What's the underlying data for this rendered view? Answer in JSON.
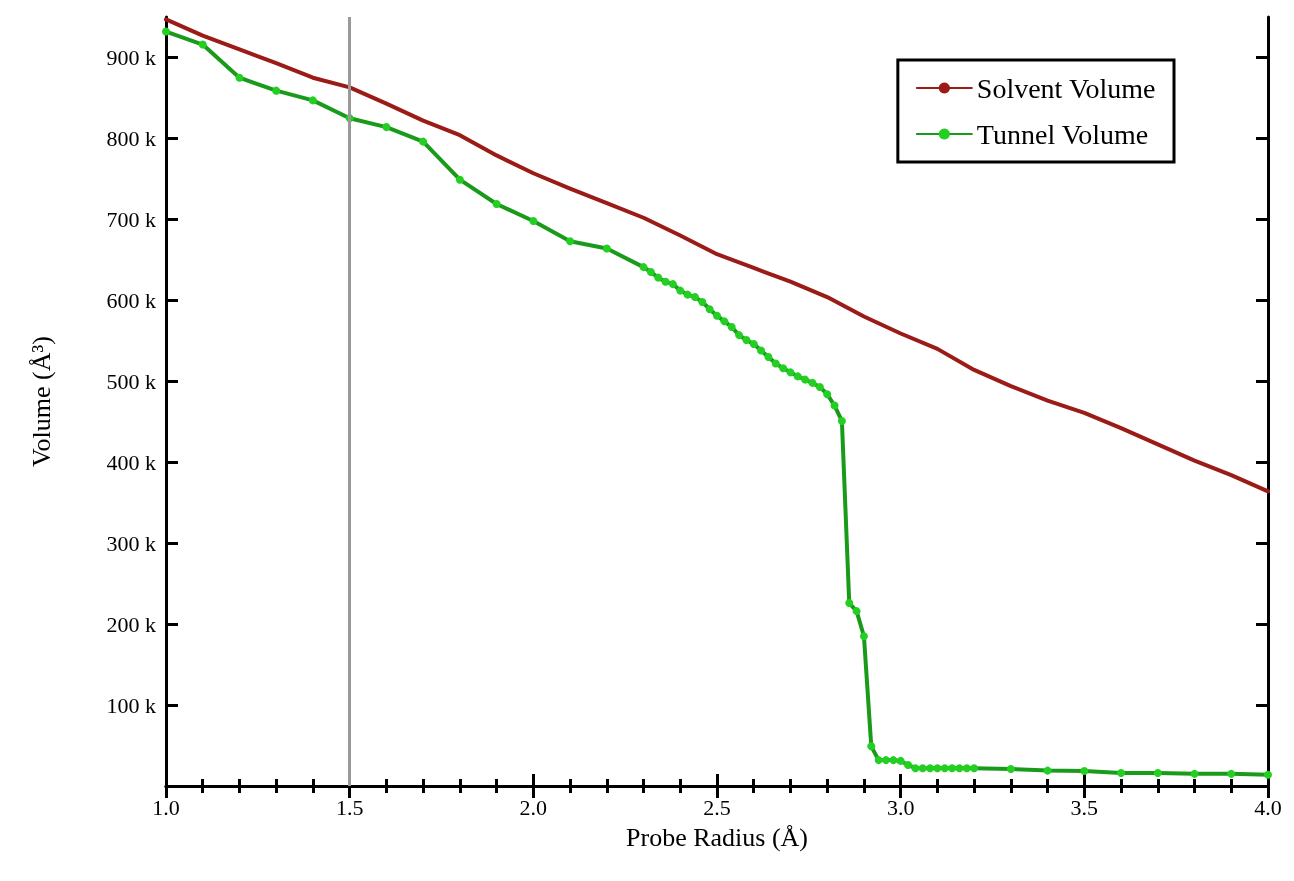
{
  "chart_data": {
    "type": "line",
    "xlabel": "Probe Radius (Å)",
    "ylabel": "Volume (Å³)",
    "xlim": [
      1.0,
      4.0
    ],
    "ylim": [
      0,
      950000
    ],
    "xticks": [
      {
        "value": 1.0,
        "label": "1.0"
      },
      {
        "value": 1.5,
        "label": "1.5"
      },
      {
        "value": 2.0,
        "label": "2.0"
      },
      {
        "value": 2.5,
        "label": "2.5"
      },
      {
        "value": 3.0,
        "label": "3.0"
      },
      {
        "value": 3.5,
        "label": "3.5"
      },
      {
        "value": 4.0,
        "label": "4.0"
      }
    ],
    "yticks": [
      {
        "value": 100000,
        "label": "100 k"
      },
      {
        "value": 200000,
        "label": "200 k"
      },
      {
        "value": 300000,
        "label": "300 k"
      },
      {
        "value": 400000,
        "label": "400 k"
      },
      {
        "value": 500000,
        "label": "500 k"
      },
      {
        "value": 600000,
        "label": "600 k"
      },
      {
        "value": 700000,
        "label": "700 k"
      },
      {
        "value": 800000,
        "label": "800 k"
      },
      {
        "value": 900000,
        "label": "900 k"
      }
    ],
    "grid": false,
    "legend": "top right",
    "line_style": "solid",
    "ref_lines": [
      {
        "axis": "x",
        "value": 1.5,
        "color": "#999999"
      }
    ],
    "series": [
      {
        "name": "Solvent Volume",
        "color": "#9b1b17",
        "marker": "none",
        "x": [
          1.0,
          1.1,
          1.2,
          1.3,
          1.4,
          1.5,
          1.6,
          1.7,
          1.8,
          1.9,
          2.0,
          2.1,
          2.2,
          2.3,
          2.4,
          2.5,
          2.6,
          2.7,
          2.8,
          2.9,
          3.0,
          3.1,
          3.2,
          3.3,
          3.4,
          3.5,
          3.6,
          3.7,
          3.8,
          3.9,
          4.0
        ],
        "values": [
          947000,
          927000,
          910000,
          893000,
          875000,
          863000,
          843000,
          822000,
          804000,
          779000,
          757000,
          738000,
          720000,
          702000,
          680000,
          657000,
          640000,
          623000,
          604000,
          580000,
          559000,
          540000,
          514000,
          494000,
          476000,
          461000,
          442000,
          422000,
          402000,
          384000,
          364000
        ]
      },
      {
        "name": "Tunnel Volume",
        "color": "#1a9a1a",
        "marker": "circle",
        "x": [
          1.0,
          1.1,
          1.2,
          1.3,
          1.4,
          1.5,
          1.6,
          1.7,
          1.8,
          1.9,
          2.0,
          2.1,
          2.2,
          2.3,
          2.32,
          2.34,
          2.36,
          2.38,
          2.4,
          2.42,
          2.44,
          2.46,
          2.48,
          2.5,
          2.52,
          2.54,
          2.56,
          2.58,
          2.6,
          2.62,
          2.64,
          2.66,
          2.68,
          2.7,
          2.72,
          2.74,
          2.76,
          2.78,
          2.8,
          2.82,
          2.84,
          2.86,
          2.88,
          2.9,
          2.92,
          2.94,
          2.96,
          2.98,
          3.0,
          3.02,
          3.04,
          3.06,
          3.08,
          3.1,
          3.12,
          3.14,
          3.16,
          3.18,
          3.2,
          3.3,
          3.4,
          3.5,
          3.6,
          3.7,
          3.8,
          3.9,
          4.0
        ],
        "values": [
          932000,
          916000,
          875000,
          859000,
          847000,
          825000,
          814000,
          796000,
          749000,
          719000,
          698000,
          673000,
          664000,
          641000,
          635000,
          628000,
          623000,
          620000,
          612000,
          607000,
          604000,
          598000,
          589000,
          581000,
          574000,
          567000,
          557000,
          551000,
          546000,
          538000,
          530000,
          522000,
          516000,
          511000,
          506000,
          502000,
          498000,
          493000,
          484000,
          470000,
          451000,
          226000,
          216000,
          185000,
          49000,
          32000,
          32000,
          32000,
          31000,
          26000,
          22000,
          22000,
          22000,
          22000,
          22000,
          22000,
          22000,
          22000,
          22000,
          21000,
          19000,
          18500,
          16000,
          16000,
          15000,
          15000,
          14000
        ]
      }
    ]
  }
}
